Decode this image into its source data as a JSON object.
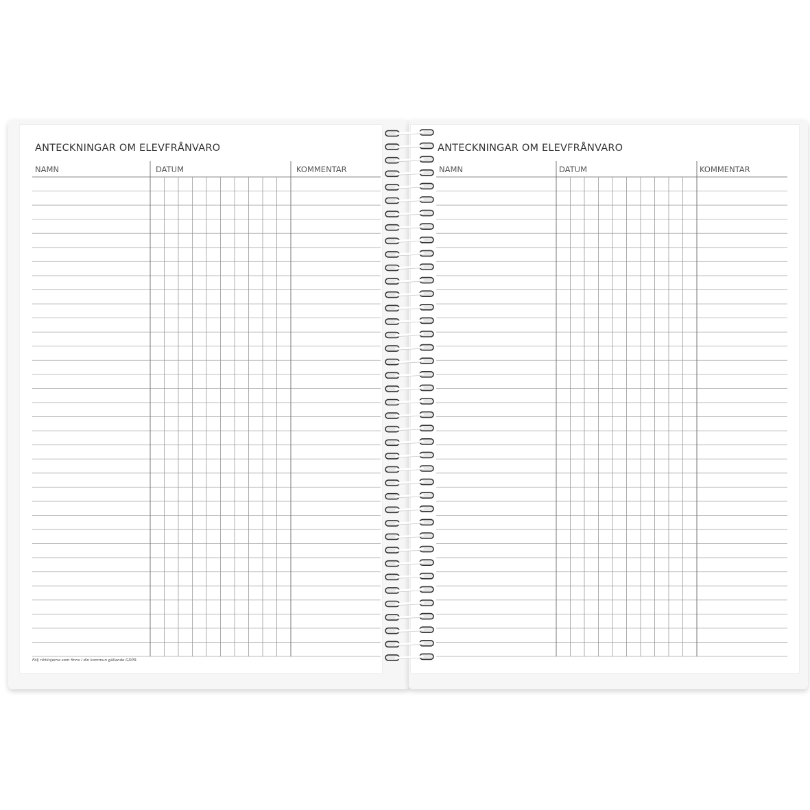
{
  "pages": [
    {
      "title": "ANTECKNINGAR OM ELEVFRÅNVARO",
      "columns": {
        "name": "NAMN",
        "date": "DATUM",
        "comment": "KOMMENTAR"
      },
      "footer": "Följ riktlinjerna som finns i din kommun gällande GDPR."
    },
    {
      "title": "ANTECKNINGAR OM ELEVFRÅNVARO",
      "columns": {
        "name": "NAMN",
        "date": "DATUM",
        "comment": "KOMMENTAR"
      }
    }
  ],
  "rows_per_page": 34,
  "date_columns": 10,
  "spiral_loops": 40,
  "colors": {
    "rule": "#b5b5b5",
    "column_rule": "#777777",
    "cover": "#f6f6f6"
  }
}
